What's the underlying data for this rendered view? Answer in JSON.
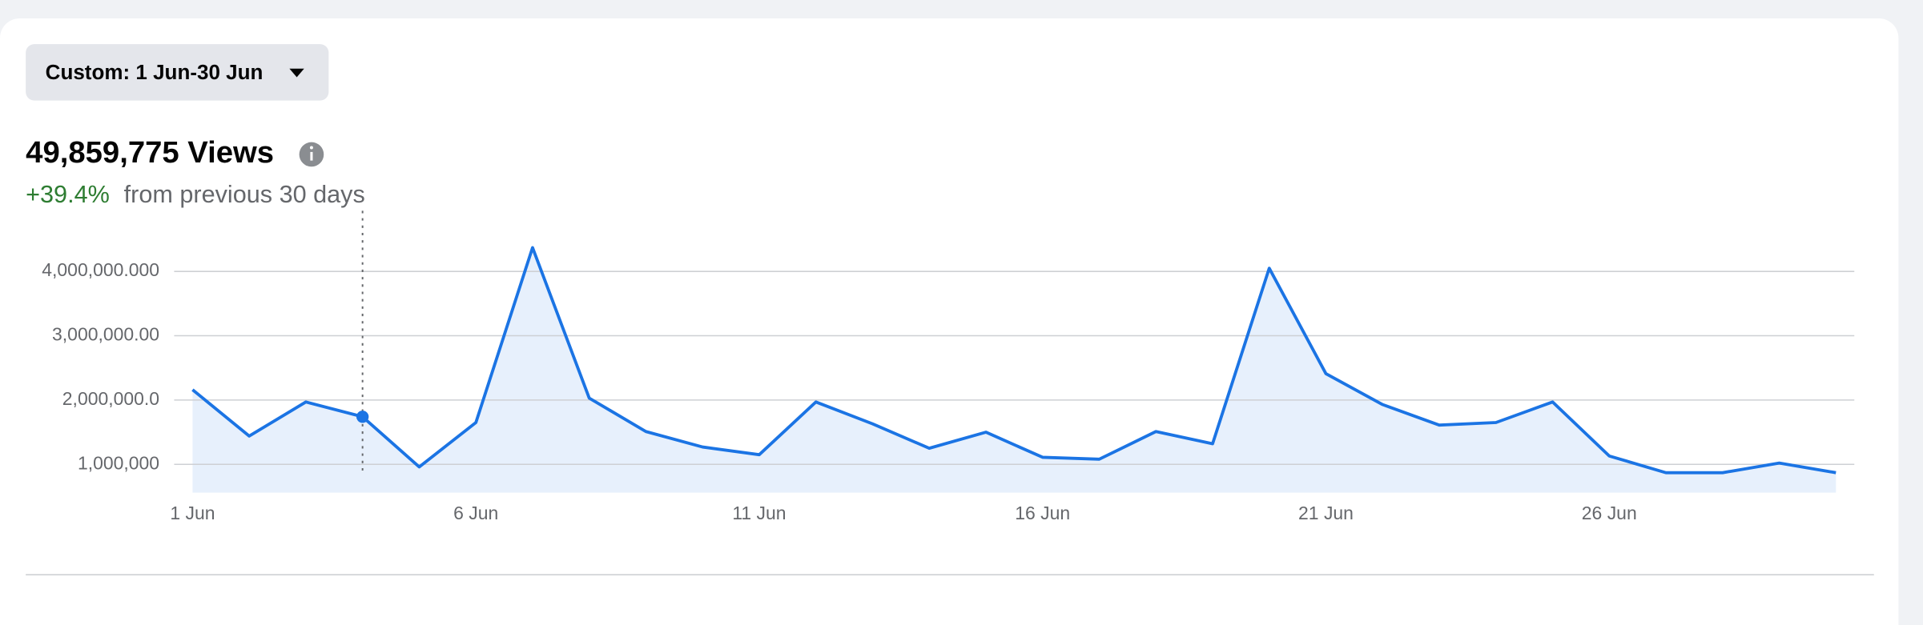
{
  "header": {
    "date_button": "Custom: 1 Jun-30 Jun",
    "total": "49,859,775 Views",
    "change": "+39.4%",
    "change_text": "from previous 30 days"
  },
  "chart_data": {
    "type": "line",
    "categories": [
      "1 Jun",
      null,
      null,
      null,
      null,
      "6 Jun",
      null,
      null,
      null,
      null,
      "11 Jun",
      null,
      null,
      null,
      null,
      "16 Jun",
      null,
      null,
      null,
      null,
      "21 Jun",
      null,
      null,
      null,
      null,
      "26 Jun",
      null,
      null,
      null,
      null
    ],
    "series": [
      {
        "color": "#1b74e4",
        "values": [
          2160000,
          1440000,
          1970000,
          1740000,
          960000,
          1650000,
          4370000,
          2030000,
          1510000,
          1270000,
          1150000,
          1970000,
          1630000,
          1250000,
          1500000,
          1110000,
          1080000,
          1510000,
          1320000,
          4050000,
          2410000,
          1930000,
          1610000,
          1650000,
          1970000,
          1130000,
          870000,
          870000,
          1020000,
          870000
        ]
      }
    ],
    "ylim": [
      560000,
      4600000
    ],
    "yticks": [
      {
        "value": 1000000,
        "label": "1,000,000"
      },
      {
        "value": 2000000,
        "label": "2,000,000.0"
      },
      {
        "value": 3000000,
        "label": "3,000,000.00"
      },
      {
        "value": 4000000,
        "label": "4,000,000.000"
      }
    ],
    "grid": true
  }
}
